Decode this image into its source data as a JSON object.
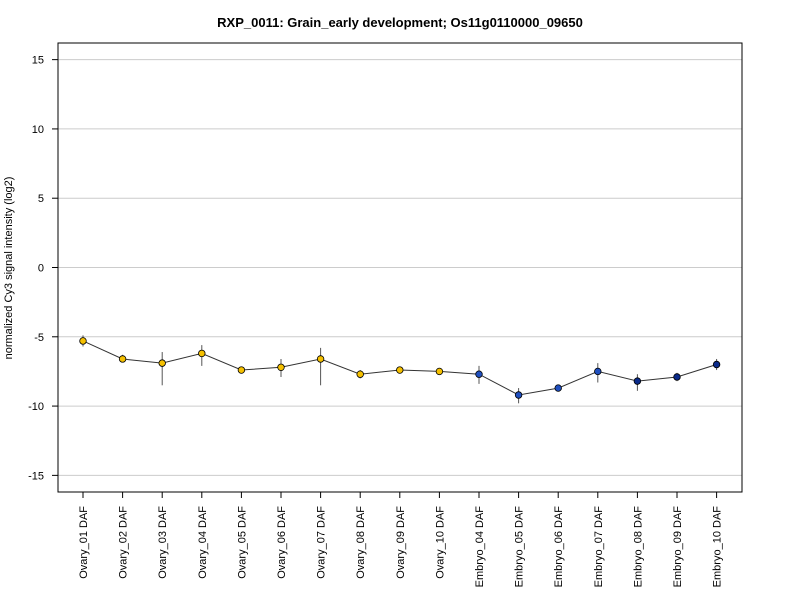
{
  "chart_data": {
    "type": "line",
    "title": "RXP_0011: Grain_early development; Os11g0110000_09650",
    "xlabel": "",
    "ylabel": "normalized Cy3 signal intensity (log2)",
    "ylim": [
      -16.2,
      16.2
    ],
    "yticks": [
      -15,
      -10,
      -5,
      0,
      5,
      10,
      15
    ],
    "grid": true,
    "categories": [
      "Ovary_01 DAF",
      "Ovary_02 DAF",
      "Ovary_03 DAF",
      "Ovary_04 DAF",
      "Ovary_05 DAF",
      "Ovary_06 DAF",
      "Ovary_07 DAF",
      "Ovary_08 DAF",
      "Ovary_09 DAF",
      "Ovary_10 DAF",
      "Embryo_04 DAF",
      "Embryo_05 DAF",
      "Embryo_06 DAF",
      "Embryo_07 DAF",
      "Embryo_08 DAF",
      "Embryo_09 DAF",
      "Embryo_10 DAF"
    ],
    "values": [
      -5.3,
      -6.6,
      -6.9,
      -6.2,
      -7.4,
      -7.2,
      -6.6,
      -7.7,
      -7.4,
      -7.5,
      -7.7,
      -9.2,
      -8.7,
      -7.5,
      -8.2,
      -7.9,
      -7.0
    ],
    "error_low": [
      -5.7,
      -6.8,
      -8.5,
      -7.1,
      -7.5,
      -7.9,
      -8.5,
      -8.0,
      -7.5,
      -7.6,
      -8.4,
      -9.8,
      -8.8,
      -8.3,
      -8.9,
      -8.2,
      -7.4
    ],
    "error_high": [
      -4.9,
      -6.3,
      -6.1,
      -5.6,
      -7.2,
      -6.6,
      -5.8,
      -7.4,
      -7.3,
      -7.4,
      -7.1,
      -8.7,
      -8.5,
      -6.9,
      -7.7,
      -7.6,
      -6.6
    ],
    "point_colors": [
      "#f5c000",
      "#f5c000",
      "#f5c000",
      "#f5c000",
      "#f5c000",
      "#f5c000",
      "#f5c000",
      "#f5c000",
      "#f5c000",
      "#f5c000",
      "#1f4fbf",
      "#1f4fbf",
      "#1f4fbf",
      "#1f4fbf",
      "#0a2a8a",
      "#0a2a8a",
      "#0a2a8a"
    ],
    "line_color": "#333333",
    "grid_color": "#cccccc"
  }
}
